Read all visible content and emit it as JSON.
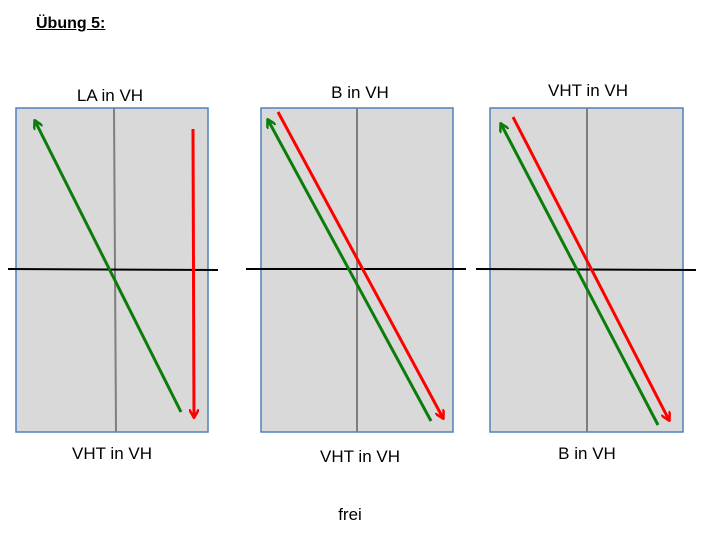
{
  "heading": "Übung 5:",
  "panels": [
    {
      "top_label": "LA in VH",
      "bottom_label": "VHT in VH"
    },
    {
      "top_label": "B in VH",
      "bottom_label": "VHT in VH"
    },
    {
      "top_label": "VHT in VH",
      "bottom_label": "B in VH"
    }
  ],
  "footer": "frei",
  "colors": {
    "panel_fill": "#d9d9d9",
    "panel_border": "#4f81bd",
    "green_arrow": "#0a7d0a",
    "red_arrow": "#ff0000",
    "vertical_axis": "#7f7f7f",
    "horizontal_axis": "#000000"
  }
}
